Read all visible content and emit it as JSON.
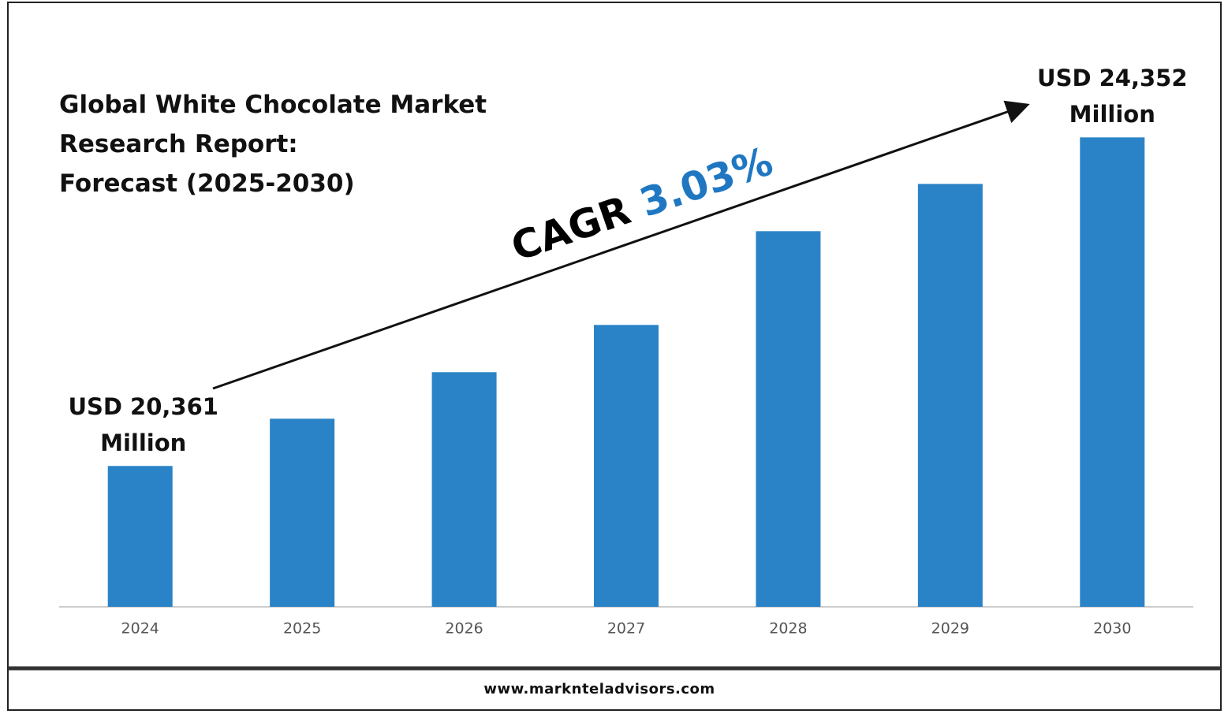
{
  "chart_data": {
    "type": "bar",
    "title": "Global White Chocolate Market\nResearch Report:\nForecast (2025-2030)",
    "categories": [
      "2024",
      "2025",
      "2026",
      "2027",
      "2028",
      "2029",
      "2030"
    ],
    "values": [
      20361,
      20935,
      21500,
      22074,
      23213,
      23787,
      24352
    ],
    "value_labels": [
      "USD 20,361\nMillion",
      null,
      null,
      null,
      null,
      null,
      "USD 24,352\nMillion"
    ],
    "color": "#2a83c6",
    "ylim": [
      18650,
      24700
    ],
    "annotation": {
      "label": "CAGR",
      "value": "3.03%",
      "value_color": "#1f77c2"
    },
    "footer": "www.marknteladvisors.com"
  }
}
